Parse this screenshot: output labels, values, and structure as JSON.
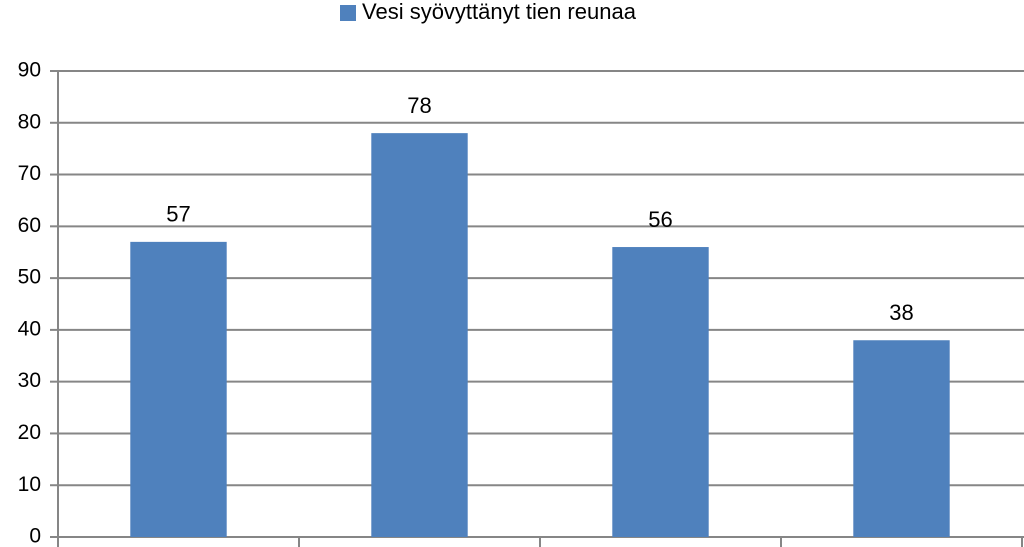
{
  "chart_data": {
    "type": "bar",
    "categories": [
      null,
      null,
      null,
      null
    ],
    "series": [
      {
        "name": "Vesi syövyttänyt tien reunaa",
        "color": "#4f81bd",
        "values": [
          57,
          78,
          56,
          38
        ]
      }
    ],
    "ylim": [
      0,
      90
    ],
    "yticks": [
      0,
      10,
      20,
      30,
      40,
      50,
      60,
      70,
      80,
      90
    ],
    "grid": true,
    "legend": "top",
    "data_labels": true
  }
}
